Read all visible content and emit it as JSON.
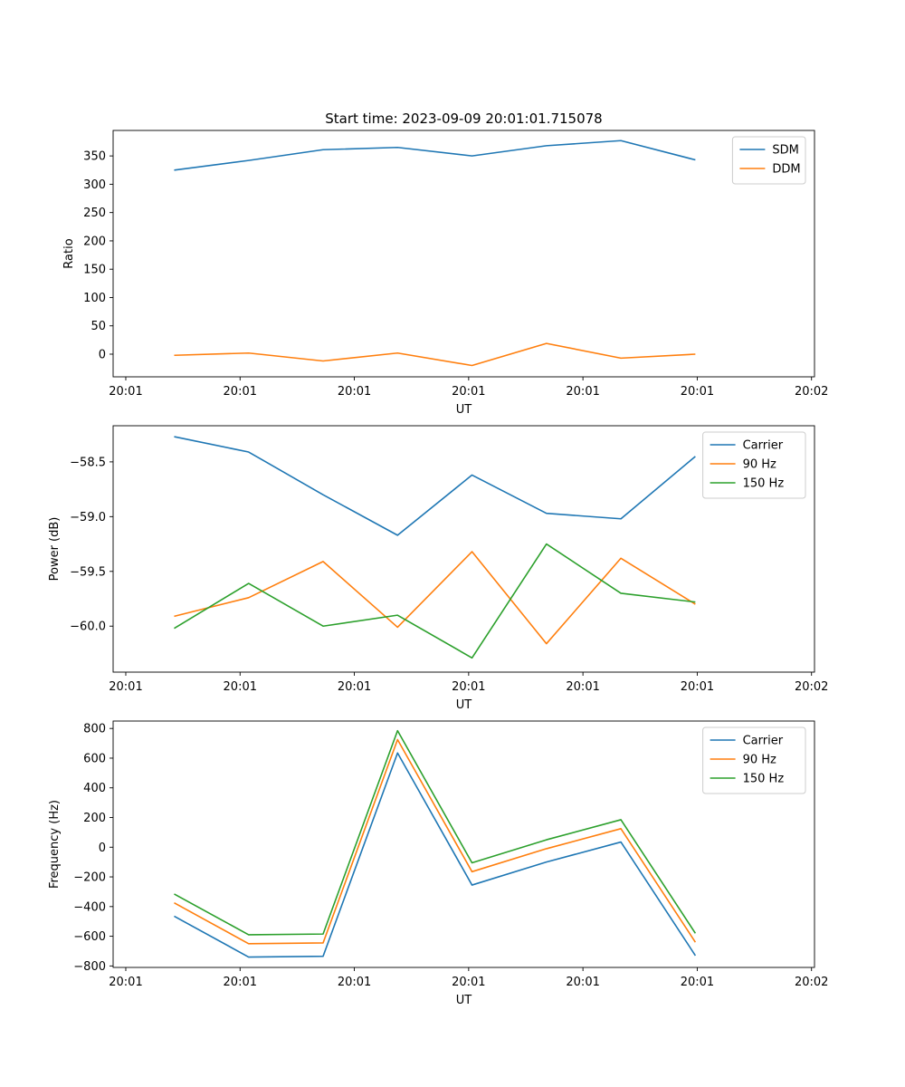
{
  "figure_title": "Start time: 2023-09-09 20:01:01.715078",
  "colors": {
    "blue": "#1f77b4",
    "orange": "#ff7f0e",
    "green": "#2ca02c"
  },
  "chart_data": [
    {
      "type": "line",
      "title": "Start time: 2023-09-09 20:01:01.715078",
      "xlabel": "UT",
      "ylabel": "Ratio",
      "x": [
        1,
        2,
        3,
        4,
        5,
        6,
        7,
        8
      ],
      "xlim": [
        0.18,
        9.6
      ],
      "xticks": [
        0.35,
        1.885,
        3.42,
        4.955,
        6.49,
        8.025,
        9.56
      ],
      "xticklabels": [
        "20:01",
        "20:01",
        "20:01",
        "20:01",
        "20:01",
        "20:01",
        "20:02"
      ],
      "ylim": [
        -40,
        395
      ],
      "yticks": [
        0,
        50,
        100,
        150,
        200,
        250,
        300,
        350
      ],
      "yticklabels": [
        "0",
        "50",
        "100",
        "150",
        "200",
        "250",
        "300",
        "350"
      ],
      "legend": "top-right",
      "series": [
        {
          "name": "SDM",
          "color": "#1f77b4",
          "values": [
            325,
            342,
            361,
            365,
            350,
            368,
            377,
            343
          ]
        },
        {
          "name": "DDM",
          "color": "#ff7f0e",
          "values": [
            -2,
            2,
            -12,
            2,
            -20,
            19,
            -7,
            0
          ]
        }
      ]
    },
    {
      "type": "line",
      "xlabel": "UT",
      "ylabel": "Power (dB)",
      "x": [
        1,
        2,
        3,
        4,
        5,
        6,
        7,
        8
      ],
      "xlim": [
        0.18,
        9.6
      ],
      "xticks": [
        0.35,
        1.885,
        3.42,
        4.955,
        6.49,
        8.025,
        9.56
      ],
      "xticklabels": [
        "20:01",
        "20:01",
        "20:01",
        "20:01",
        "20:01",
        "20:01",
        "20:02"
      ],
      "ylim": [
        -60.42,
        -58.17
      ],
      "yticks": [
        -60.0,
        -59.5,
        -59.0,
        -58.5
      ],
      "yticklabels": [
        "−60.0",
        "−59.5",
        "−59.0",
        "−58.5"
      ],
      "legend": "top-right",
      "series": [
        {
          "name": "Carrier",
          "color": "#1f77b4",
          "values": [
            -58.27,
            -58.41,
            -58.8,
            -59.17,
            -58.62,
            -58.97,
            -59.02,
            -58.45
          ]
        },
        {
          "name": "90 Hz",
          "color": "#ff7f0e",
          "values": [
            -59.91,
            -59.74,
            -59.41,
            -60.01,
            -59.32,
            -60.16,
            -59.38,
            -59.8
          ]
        },
        {
          "name": "150 Hz",
          "color": "#2ca02c",
          "values": [
            -60.02,
            -59.61,
            -60.0,
            -59.9,
            -60.29,
            -59.25,
            -59.7,
            -59.78
          ]
        }
      ]
    },
    {
      "type": "line",
      "xlabel": "UT",
      "ylabel": "Frequency (Hz)",
      "x": [
        1,
        2,
        3,
        4,
        5,
        6,
        7,
        8
      ],
      "xlim": [
        0.18,
        9.6
      ],
      "xticks": [
        0.35,
        1.885,
        3.42,
        4.955,
        6.49,
        8.025,
        9.56
      ],
      "xticklabels": [
        "20:01",
        "20:01",
        "20:01",
        "20:01",
        "20:01",
        "20:01",
        "20:02"
      ],
      "ylim": [
        -810,
        850
      ],
      "yticks": [
        -800,
        -600,
        -400,
        -200,
        0,
        200,
        400,
        600,
        800
      ],
      "yticklabels": [
        "−800",
        "−600",
        "−400",
        "−200",
        "0",
        "200",
        "400",
        "600",
        "800"
      ],
      "legend": "top-right",
      "series": [
        {
          "name": "Carrier",
          "color": "#1f77b4",
          "values": [
            -465,
            -740,
            -735,
            635,
            -255,
            -100,
            35,
            -730
          ]
        },
        {
          "name": "90 Hz",
          "color": "#ff7f0e",
          "values": [
            -375,
            -650,
            -645,
            725,
            -165,
            -10,
            125,
            -640
          ]
        },
        {
          "name": "150 Hz",
          "color": "#2ca02c",
          "values": [
            -315,
            -590,
            -585,
            785,
            -105,
            50,
            185,
            -580
          ]
        }
      ]
    }
  ]
}
